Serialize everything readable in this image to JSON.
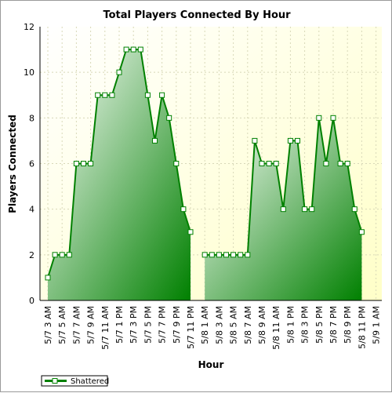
{
  "chart_data": {
    "type": "area",
    "title": "Total Players Connected By Hour",
    "xlabel": "Hour",
    "ylabel": "Players Connected",
    "ylim": [
      0,
      12
    ],
    "yticks": [
      0,
      2,
      4,
      6,
      8,
      10,
      12
    ],
    "grid": true,
    "legend_position": "bottom-left",
    "x_tick_labels": [
      "5/7 3 AM",
      "5/7 5 AM",
      "5/7 7 AM",
      "5/7 9 AM",
      "5/7 11 AM",
      "5/7 1 PM",
      "5/7 3 PM",
      "5/7 5 PM",
      "5/7 7 PM",
      "5/7 9 PM",
      "5/7 11 PM",
      "5/8 1 AM",
      "5/8 3 AM",
      "5/8 5 AM",
      "5/8 7 AM",
      "5/8 9 AM",
      "5/8 11 AM",
      "5/8 1 PM",
      "5/8 3 PM",
      "5/8 5 PM",
      "5/8 7 PM",
      "5/8 9 PM",
      "5/8 11 PM",
      "5/9 1 AM"
    ],
    "x": [
      "5/7 3 AM",
      "5/7 4 AM",
      "5/7 5 AM",
      "5/7 6 AM",
      "5/7 7 AM",
      "5/7 8 AM",
      "5/7 9 AM",
      "5/7 10 AM",
      "5/7 11 AM",
      "5/7 12 PM",
      "5/7 1 PM",
      "5/7 2 PM",
      "5/7 3 PM",
      "5/7 4 PM",
      "5/7 5 PM",
      "5/7 6 PM",
      "5/7 7 PM",
      "5/7 8 PM",
      "5/7 9 PM",
      "5/7 10 PM",
      "5/7 11 PM",
      "5/8 12 AM",
      "5/8 1 AM",
      "5/8 2 AM",
      "5/8 3 AM",
      "5/8 4 AM",
      "5/8 5 AM",
      "5/8 6 AM",
      "5/8 7 AM",
      "5/8 8 AM",
      "5/8 9 AM",
      "5/8 10 AM",
      "5/8 11 AM",
      "5/8 12 PM",
      "5/8 1 PM",
      "5/8 2 PM",
      "5/8 3 PM",
      "5/8 4 PM",
      "5/8 5 PM",
      "5/8 6 PM",
      "5/8 7 PM",
      "5/8 8 PM",
      "5/8 9 PM",
      "5/8 10 PM",
      "5/8 11 PM"
    ],
    "series": [
      {
        "name": "Shattered",
        "color": "#008000",
        "values": [
          1,
          2,
          2,
          2,
          6,
          6,
          6,
          9,
          9,
          9,
          10,
          11,
          11,
          11,
          9,
          7,
          9,
          8,
          6,
          4,
          3,
          null,
          2,
          2,
          2,
          2,
          2,
          2,
          2,
          7,
          6,
          6,
          6,
          4,
          7,
          7,
          4,
          4,
          8,
          6,
          8,
          6,
          6,
          4,
          3
        ]
      }
    ]
  }
}
